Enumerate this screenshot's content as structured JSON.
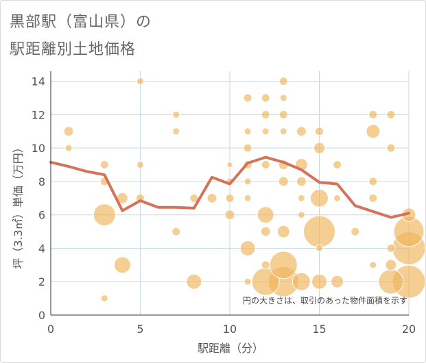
{
  "title_line1": "黒部駅（富山県）の",
  "title_line2": "駅距離別土地価格",
  "chart_data": {
    "type": "scatter",
    "xlabel": "駅距離（分）",
    "ylabel": "坪（3.3㎡）単価（万円）",
    "xlim": [
      0,
      20
    ],
    "ylim": [
      0,
      14.6
    ],
    "xticks": [
      "0",
      "5",
      "10",
      "15",
      "20"
    ],
    "yticks": [
      "0",
      "2",
      "4",
      "6",
      "8",
      "10",
      "12",
      "14"
    ],
    "grid": true,
    "annotation": "円の大きさは、取引のあった物件面積を示す",
    "colors": {
      "points": "#f0b35a",
      "line": "#d5735a",
      "grid": "#c9d6e6"
    },
    "points": [
      {
        "x": 1,
        "y": 11,
        "s": 7
      },
      {
        "x": 1,
        "y": 10,
        "s": 5
      },
      {
        "x": 3,
        "y": 9,
        "s": 6
      },
      {
        "x": 3,
        "y": 8,
        "s": 6
      },
      {
        "x": 3,
        "y": 6,
        "s": 16
      },
      {
        "x": 3,
        "y": 1,
        "s": 5
      },
      {
        "x": 4,
        "y": 7,
        "s": 8
      },
      {
        "x": 4,
        "y": 3,
        "s": 12
      },
      {
        "x": 5,
        "y": 14,
        "s": 5
      },
      {
        "x": 5,
        "y": 9,
        "s": 5
      },
      {
        "x": 5,
        "y": 7,
        "s": 6
      },
      {
        "x": 7,
        "y": 12,
        "s": 5
      },
      {
        "x": 7,
        "y": 11,
        "s": 5
      },
      {
        "x": 7,
        "y": 5,
        "s": 6
      },
      {
        "x": 8,
        "y": 7,
        "s": 6
      },
      {
        "x": 8,
        "y": 2,
        "s": 11
      },
      {
        "x": 9,
        "y": 7,
        "s": 7
      },
      {
        "x": 10,
        "y": 9,
        "s": 4
      },
      {
        "x": 10,
        "y": 8,
        "s": 5
      },
      {
        "x": 10,
        "y": 7,
        "s": 6
      },
      {
        "x": 10,
        "y": 6,
        "s": 7
      },
      {
        "x": 11,
        "y": 13,
        "s": 6
      },
      {
        "x": 11,
        "y": 11,
        "s": 5
      },
      {
        "x": 11,
        "y": 10,
        "s": 6
      },
      {
        "x": 11,
        "y": 9,
        "s": 6
      },
      {
        "x": 11,
        "y": 8,
        "s": 5
      },
      {
        "x": 11,
        "y": 7,
        "s": 5
      },
      {
        "x": 11,
        "y": 4,
        "s": 11
      },
      {
        "x": 11,
        "y": 2,
        "s": 5
      },
      {
        "x": 12,
        "y": 13,
        "s": 6
      },
      {
        "x": 12,
        "y": 12,
        "s": 6
      },
      {
        "x": 12,
        "y": 11,
        "s": 5
      },
      {
        "x": 12,
        "y": 9,
        "s": 6
      },
      {
        "x": 12,
        "y": 6,
        "s": 12
      },
      {
        "x": 12,
        "y": 5,
        "s": 7
      },
      {
        "x": 12,
        "y": 3,
        "s": 6
      },
      {
        "x": 12,
        "y": 2,
        "s": 20
      },
      {
        "x": 13,
        "y": 14,
        "s": 6
      },
      {
        "x": 13,
        "y": 13,
        "s": 5
      },
      {
        "x": 13,
        "y": 12,
        "s": 6
      },
      {
        "x": 13,
        "y": 11,
        "s": 5
      },
      {
        "x": 13,
        "y": 9,
        "s": 7
      },
      {
        "x": 13,
        "y": 8,
        "s": 7
      },
      {
        "x": 13,
        "y": 5,
        "s": 9
      },
      {
        "x": 13,
        "y": 3,
        "s": 20
      },
      {
        "x": 13,
        "y": 2,
        "s": 22
      },
      {
        "x": 14,
        "y": 11,
        "s": 7
      },
      {
        "x": 14,
        "y": 9,
        "s": 9
      },
      {
        "x": 14,
        "y": 8,
        "s": 7
      },
      {
        "x": 14,
        "y": 7,
        "s": 5
      },
      {
        "x": 14,
        "y": 6,
        "s": 5
      },
      {
        "x": 14,
        "y": 2,
        "s": 13
      },
      {
        "x": 15,
        "y": 11,
        "s": 6
      },
      {
        "x": 15,
        "y": 10,
        "s": 8
      },
      {
        "x": 15,
        "y": 7,
        "s": 13
      },
      {
        "x": 15,
        "y": 5,
        "s": 23
      },
      {
        "x": 15,
        "y": 4,
        "s": 5
      },
      {
        "x": 15,
        "y": 2,
        "s": 11
      },
      {
        "x": 16,
        "y": 9,
        "s": 6
      },
      {
        "x": 16,
        "y": 7,
        "s": 5
      },
      {
        "x": 16,
        "y": 2,
        "s": 9
      },
      {
        "x": 17,
        "y": 5,
        "s": 6
      },
      {
        "x": 18,
        "y": 12,
        "s": 6
      },
      {
        "x": 18,
        "y": 11,
        "s": 10
      },
      {
        "x": 18,
        "y": 8,
        "s": 6
      },
      {
        "x": 18,
        "y": 7,
        "s": 6
      },
      {
        "x": 18,
        "y": 3,
        "s": 5
      },
      {
        "x": 19,
        "y": 12,
        "s": 6
      },
      {
        "x": 19,
        "y": 10,
        "s": 6
      },
      {
        "x": 19,
        "y": 4,
        "s": 6
      },
      {
        "x": 19,
        "y": 3,
        "s": 8
      },
      {
        "x": 19,
        "y": 2,
        "s": 18
      },
      {
        "x": 20,
        "y": 6,
        "s": 10
      },
      {
        "x": 20,
        "y": 5,
        "s": 22
      },
      {
        "x": 20,
        "y": 4,
        "s": 24
      },
      {
        "x": 20,
        "y": 2,
        "s": 24
      }
    ],
    "trend": {
      "x": [
        0,
        1,
        2,
        3,
        4,
        5,
        6,
        7,
        8,
        9,
        10,
        11,
        12,
        13,
        14,
        15,
        16,
        17,
        18,
        19,
        20
      ],
      "y": [
        9.15,
        8.9,
        8.6,
        8.4,
        6.25,
        6.85,
        6.45,
        6.45,
        6.4,
        8.25,
        7.85,
        9.1,
        9.45,
        9.15,
        8.7,
        7.95,
        7.85,
        6.55,
        6.2,
        5.85,
        6.1
      ]
    }
  }
}
